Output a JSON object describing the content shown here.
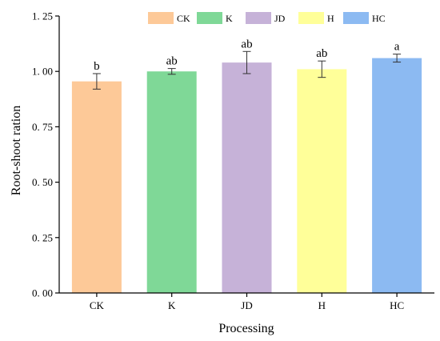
{
  "chart_data": {
    "type": "bar",
    "categories": [
      "CK",
      "K",
      "JD",
      "H",
      "HC"
    ],
    "values": [
      0.955,
      1.0,
      1.04,
      1.01,
      1.06
    ],
    "errors": [
      0.035,
      0.013,
      0.05,
      0.037,
      0.018
    ],
    "significance": [
      "b",
      "ab",
      "ab",
      "ab",
      "a"
    ],
    "colors": [
      "#fdc998",
      "#7fd897",
      "#c6b2d8",
      "#ffff99",
      "#8cbaf2"
    ],
    "xlabel": "Processing",
    "ylabel": "Root-shoot ration",
    "ylim": [
      0,
      1.25
    ],
    "yticks": [
      0,
      0.25,
      0.5,
      0.75,
      1.0,
      1.25
    ],
    "ytick_labels": [
      "0. 00",
      "0. 25",
      "0. 50",
      "0. 75",
      "1. 00",
      "1. 25"
    ],
    "legend": {
      "position": "top-center",
      "entries": [
        "CK",
        "K",
        "JD",
        "H",
        "HC"
      ]
    },
    "grid": false
  }
}
